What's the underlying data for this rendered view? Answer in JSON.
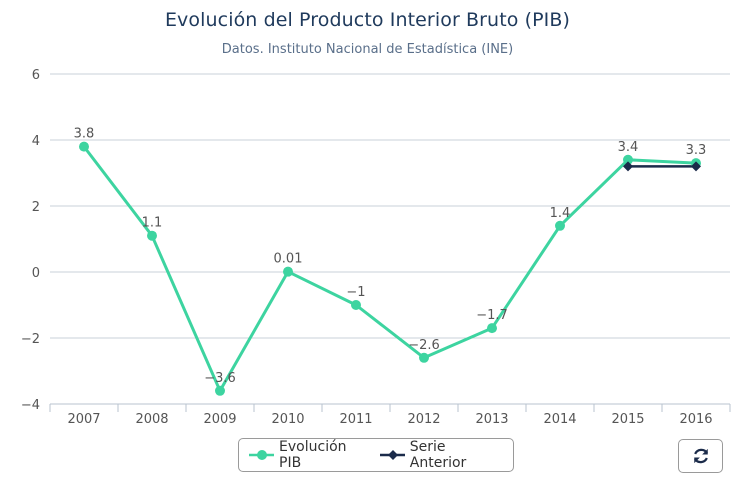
{
  "header": {
    "title": "Evolución del Producto Interior Bruto (PIB)",
    "subtitle": "Datos. Instituto Nacional de Estadística (INE)"
  },
  "colors": {
    "series_main": "#3dd4a0",
    "series_prev": "#1b2b4a",
    "grid": "#c8d0da"
  },
  "icons": {
    "refresh": "refresh-icon"
  },
  "chart_data": {
    "type": "line",
    "title": "Evolución del Producto Interior Bruto (PIB)",
    "subtitle": "Datos. Instituto Nacional de Estadística (INE)",
    "categories": [
      "2007",
      "2008",
      "2009",
      "2010",
      "2011",
      "2012",
      "2013",
      "2014",
      "2015",
      "2016"
    ],
    "ylim": [
      -4,
      6
    ],
    "yticks": [
      6,
      4,
      2,
      0,
      -2,
      -4
    ],
    "ytick_labels": [
      "6",
      "4",
      "2",
      "0",
      "−2",
      "−4"
    ],
    "grid": true,
    "legend_position": "bottom-center",
    "series": [
      {
        "name": "Evolución PIB",
        "values": [
          3.8,
          1.1,
          -3.6,
          0.01,
          -1,
          -2.6,
          -1.7,
          1.4,
          3.4,
          3.3
        ],
        "labels": [
          "3.8",
          "1.1",
          "−3.6",
          "0.01",
          "−1",
          "−2.6",
          "−1.7",
          "1.4",
          "3.4",
          "3.3"
        ],
        "marker": "circle"
      },
      {
        "name": "Serie Anterior",
        "values": [
          null,
          null,
          null,
          null,
          null,
          null,
          null,
          null,
          3.2,
          3.2
        ],
        "marker": "diamond"
      }
    ]
  }
}
